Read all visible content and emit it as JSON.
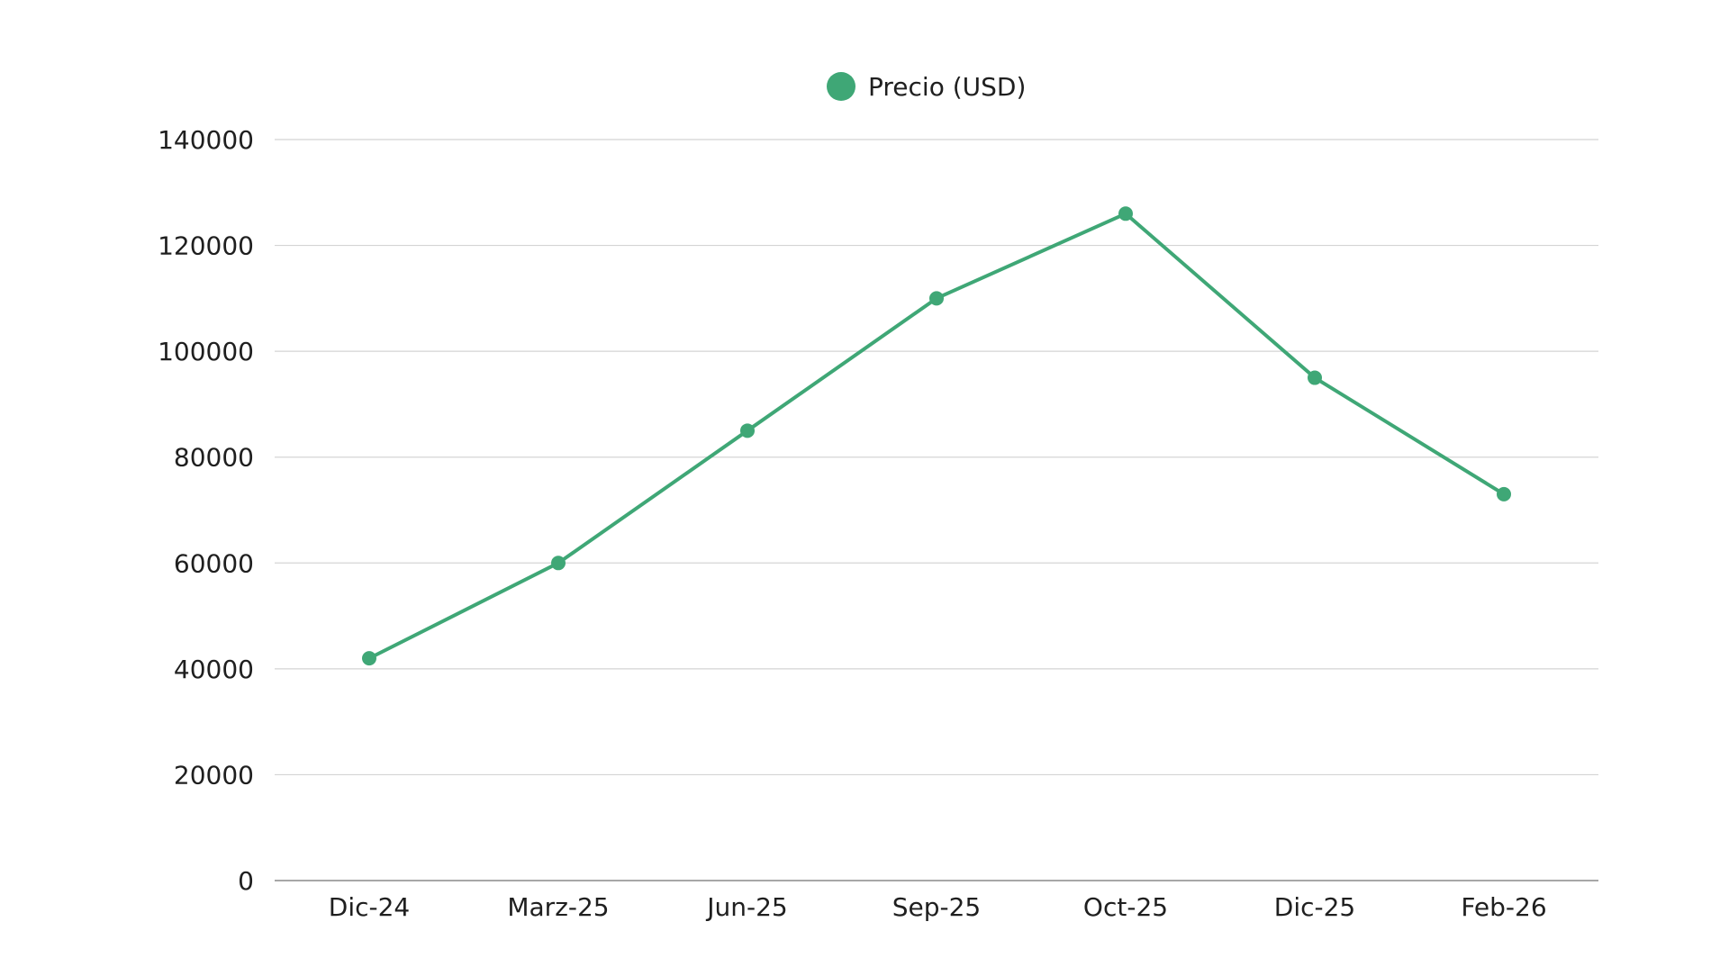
{
  "chart_data": {
    "type": "line",
    "categories": [
      "Dic-24",
      "Marz-25",
      "Jun-25",
      "Sep-25",
      "Oct-25",
      "Dic-25",
      "Feb-26"
    ],
    "series": [
      {
        "name": "Precio (USD)",
        "values": [
          42000,
          60000,
          85000,
          110000,
          126000,
          95000,
          73000
        ],
        "color": "#3fa776"
      }
    ],
    "ylim": [
      0,
      140000
    ],
    "yticks": [
      0,
      20000,
      40000,
      60000,
      80000,
      100000,
      120000,
      140000
    ],
    "grid": true,
    "legend": "top-center"
  },
  "colors": {
    "series": "#3fa776",
    "grid": "#d4d4d4",
    "axis": "#8a8a8a",
    "text": "#1f1f1f"
  }
}
